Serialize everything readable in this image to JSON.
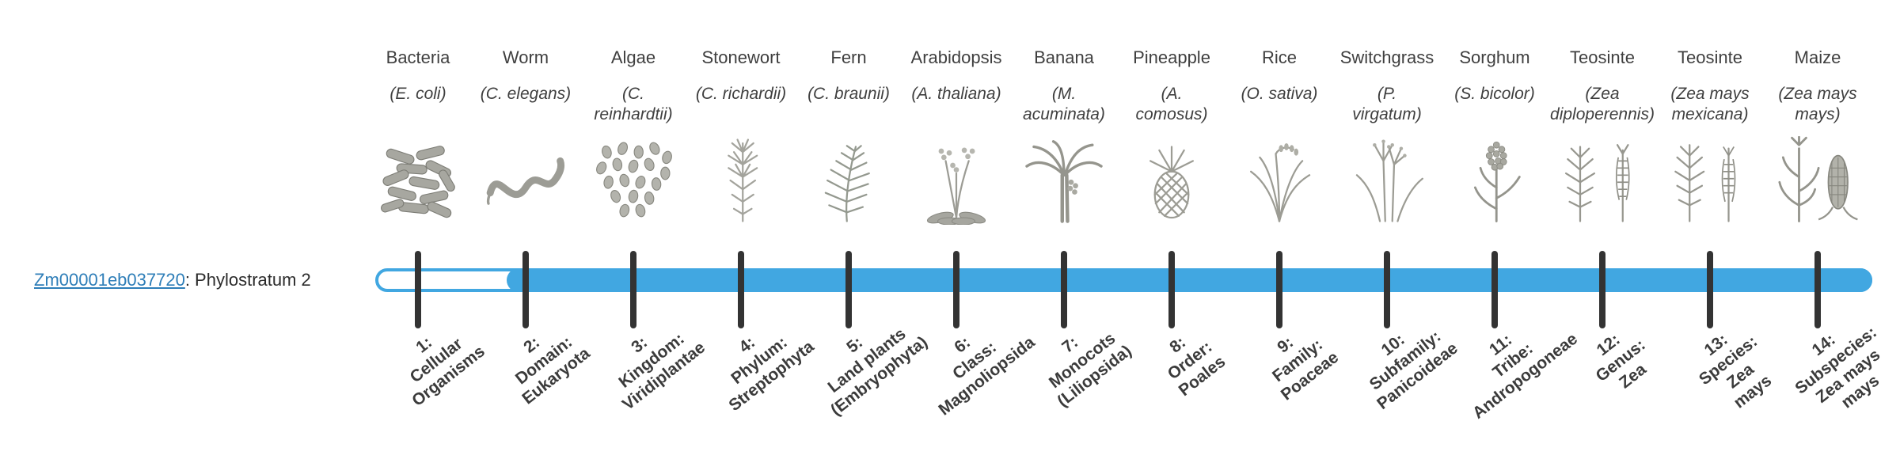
{
  "gene": {
    "id": "Zm00001eb037720",
    "suffix": ": Phylostratum 2"
  },
  "colors": {
    "bar_blue": "#41a7e1",
    "link_blue": "#2e7eb8",
    "tick_gray": "#333333",
    "text_gray": "#3f3f3f",
    "illustration_gray": "#9a9a94"
  },
  "strata": [
    {
      "common": "Bacteria",
      "sci": "(E. coli)",
      "icon": "bacteria-icon",
      "label": "1:\nCellular\nOrganisms"
    },
    {
      "common": "Worm",
      "sci": "(C. elegans)",
      "icon": "worm-icon",
      "label": "2:\nDomain:\nEukaryota"
    },
    {
      "common": "Algae",
      "sci": "(C.\nreinhardtii)",
      "icon": "algae-icon",
      "label": "3:\nKingdom:\nViridiplantae"
    },
    {
      "common": "Stonewort",
      "sci": "(C. richardii)",
      "icon": "stonewort-icon",
      "label": "4:\nPhylum:\nStreptophyta"
    },
    {
      "common": "Fern",
      "sci": "(C. braunii)",
      "icon": "fern-icon",
      "label": "5:\nLand plants\n(Embryophyta)"
    },
    {
      "common": "Arabidopsis",
      "sci": "(A. thaliana)",
      "icon": "arabidopsis-icon",
      "label": "6:\nClass:\nMagnoliopsida"
    },
    {
      "common": "Banana",
      "sci": "(M.\nacuminata)",
      "icon": "banana-icon",
      "label": "7:\nMonocots\n(Liliopsida)"
    },
    {
      "common": "Pineapple",
      "sci": "(A.\ncomosus)",
      "icon": "pineapple-icon",
      "label": "8:\nOrder:\nPoales"
    },
    {
      "common": "Rice",
      "sci": "(O. sativa)",
      "icon": "rice-icon",
      "label": "9:\nFamily:\nPoaceae"
    },
    {
      "common": "Switchgrass",
      "sci": "(P.\nvirgatum)",
      "icon": "switchgrass-icon",
      "label": "10:\nSubfamily:\nPanicoideae"
    },
    {
      "common": "Sorghum",
      "sci": "(S. bicolor)",
      "icon": "sorghum-icon",
      "label": "11:\nTribe:\nAndropogoneae"
    },
    {
      "common": "Teosinte",
      "sci": "(Zea\ndiploperennis)",
      "icon": "teosinte-diploperennis-icon",
      "label": "12:\nGenus:\nZea"
    },
    {
      "common": "Teosinte",
      "sci": "(Zea mays\nmexicana)",
      "icon": "teosinte-mexicana-icon",
      "label": "13:\nSpecies:\nZea\nmays"
    },
    {
      "common": "Maize",
      "sci": "(Zea mays\nmays)",
      "icon": "maize-icon",
      "label": "14:\nSubspecies:\nZea mays\nmays"
    }
  ]
}
